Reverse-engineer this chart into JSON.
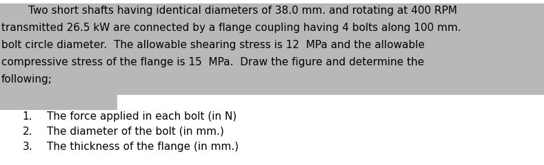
{
  "background_color": "#ffffff",
  "highlight_bg": "#b8b8b8",
  "para_lines": [
    "        Two short shafts having identical diameters of 38.0 mm. and rotating at 400 RPM",
    "transmitted 26.5 kW are connected by a flange coupling having 4 bolts along 100 mm.",
    "bolt circle diameter.  The allowable shearing stress is 12  MPa and the allowable",
    "compressive stress of the flange is 15  MPa.  Draw the figure and determine the",
    "following;"
  ],
  "list_items": [
    "The force applied in each bolt (in N)",
    "The diameter of the bolt (in mm.)",
    "The thickness of the flange (in mm.)"
  ],
  "list_numbers": [
    "1.",
    "2.",
    "3."
  ],
  "font_family": "DejaVu Sans",
  "para_fontsize": 11.0,
  "list_fontsize": 11.0,
  "text_color": "#000000"
}
